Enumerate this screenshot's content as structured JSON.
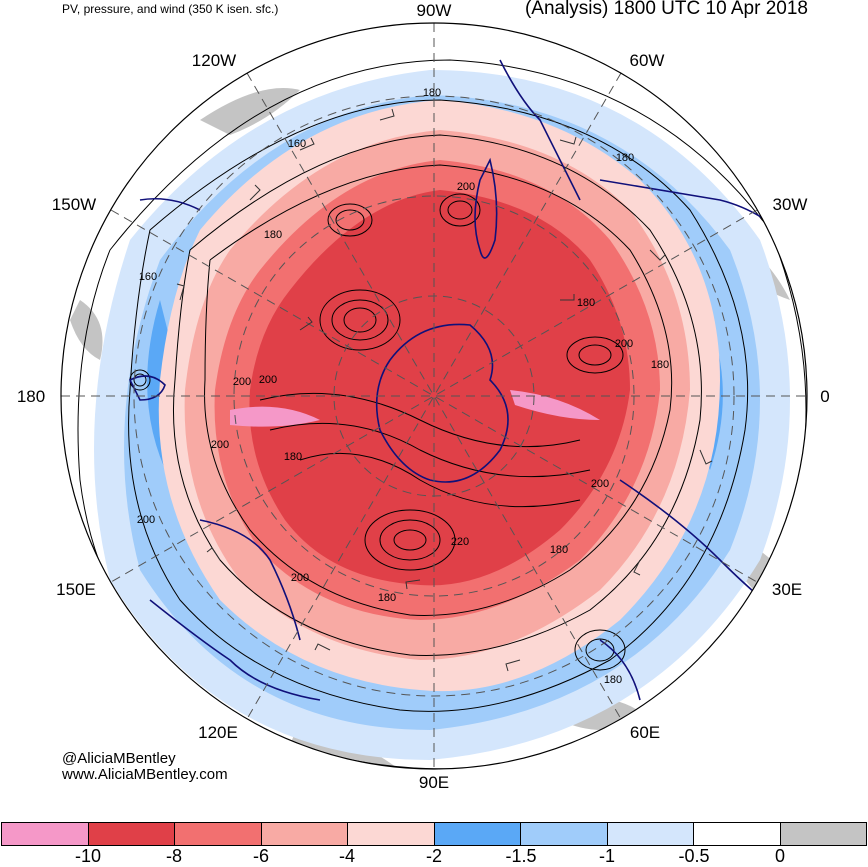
{
  "header": {
    "title_left": "PV, pressure, and wind (350 K isen. sfc.)",
    "title_right": "(Analysis) 1800 UTC 10 Apr 2018"
  },
  "credit": {
    "handle": "@AliciaMBentley",
    "website": "www.AliciaMBentley.com"
  },
  "longitude_labels": {
    "w90": "90W",
    "w60": "60W",
    "w30": "30W",
    "zero": "0",
    "e30": "30E",
    "e60": "60E",
    "e90": "90E",
    "e120": "120E",
    "e150": "150E",
    "d180": "180",
    "w150": "150W",
    "w120": "120W"
  },
  "contour_labels": [
    "180",
    "160",
    "180",
    "180",
    "160",
    "200",
    "200",
    "180",
    "200",
    "200",
    "220",
    "180",
    "200",
    "180",
    "180",
    "200",
    "180",
    "200",
    "200",
    "180"
  ],
  "colorbar": {
    "colors": [
      "#f598c8",
      "#e04048",
      "#f27070",
      "#f8aaa4",
      "#fcd8d4",
      "#5aa8f6",
      "#a0ccfa",
      "#d4e6fc",
      "#ffffff",
      "#c4c4c4"
    ],
    "ticks": [
      "-10",
      "-8",
      "-6",
      "-4",
      "-2",
      "-1.5",
      "-1",
      "-0.5",
      "0"
    ]
  },
  "palette": {
    "red_dark": "#e04048",
    "red": "#f27070",
    "red_light": "#f8aaa4",
    "pink": "#fcd8d4",
    "blue": "#5aa8f6",
    "blue_light": "#a0ccfa",
    "blue_pale": "#d4e6fc",
    "gray": "#c4c4c4",
    "coast": "#10107a",
    "contour": "#000000",
    "grid": "#555555"
  }
}
